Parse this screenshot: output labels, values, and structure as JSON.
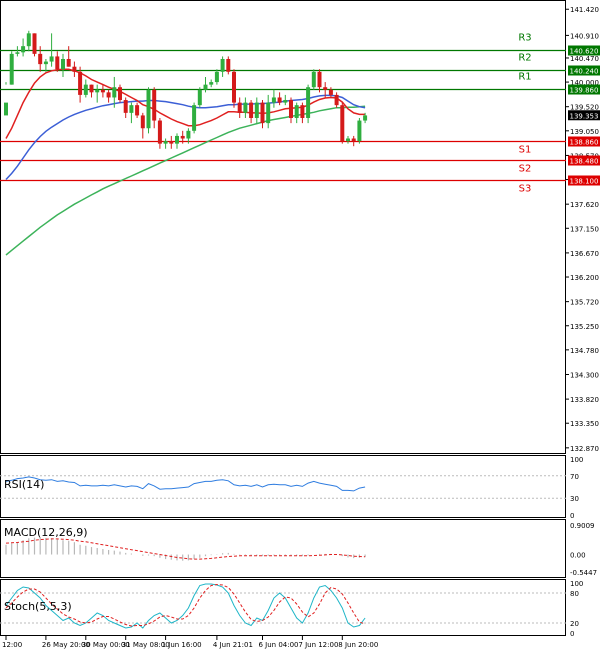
{
  "chart_data": {
    "type": "candlestick",
    "instrument_note": "4-hour chart with pivot levels, MAs, RSI, MACD, Stochastic",
    "price_axis": {
      "ylim": [
        132.75,
        141.6
      ],
      "ticks": [
        "141.420",
        "140.910",
        "140.470",
        "140.000",
        "139.520",
        "139.050",
        "138.570",
        "138.100",
        "137.620",
        "137.150",
        "136.670",
        "136.200",
        "135.720",
        "135.250",
        "134.780",
        "134.300",
        "133.820",
        "133.350",
        "132.870"
      ],
      "current_price": "139.353"
    },
    "levels": [
      {
        "name": "R3",
        "value": 140.62,
        "label": "140.620",
        "color": "#007700"
      },
      {
        "name": "R2",
        "value": 140.24,
        "label": "140.240",
        "color": "#007700"
      },
      {
        "name": "R1",
        "value": 139.86,
        "label": "139.860",
        "color": "#007700"
      },
      {
        "name": "S1",
        "value": 138.86,
        "label": "138.860",
        "color": "#dd0000"
      },
      {
        "name": "S2",
        "value": 138.48,
        "label": "138.480",
        "color": "#dd0000"
      },
      {
        "name": "S3",
        "value": 138.1,
        "label": "138.100",
        "color": "#dd0000"
      }
    ],
    "candles": [
      [
        139.35,
        139.95,
        139.6,
        140.0
      ],
      [
        139.95,
        139.95,
        140.55,
        140.6
      ],
      [
        140.55,
        140.5,
        140.58,
        140.7
      ],
      [
        140.58,
        140.5,
        140.7,
        140.85
      ],
      [
        140.7,
        140.6,
        140.95,
        141.0
      ],
      [
        140.95,
        140.5,
        140.55,
        140.95
      ],
      [
        140.55,
        140.2,
        140.35,
        140.7
      ],
      [
        140.35,
        140.2,
        140.4,
        140.45
      ],
      [
        140.4,
        140.3,
        140.5,
        140.95
      ],
      [
        140.5,
        140.2,
        140.25,
        140.6
      ],
      [
        140.25,
        140.1,
        140.45,
        140.55
      ],
      [
        140.45,
        140.3,
        140.3,
        140.7
      ],
      [
        140.3,
        140.1,
        140.2,
        140.4
      ],
      [
        140.2,
        139.6,
        139.75,
        140.3
      ],
      [
        139.75,
        139.7,
        139.95,
        140.05
      ],
      [
        139.95,
        139.7,
        139.8,
        139.95
      ],
      [
        139.8,
        139.6,
        139.85,
        139.95
      ],
      [
        139.85,
        139.7,
        139.8,
        139.95
      ],
      [
        139.8,
        139.6,
        139.7,
        139.85
      ],
      [
        139.7,
        139.5,
        139.9,
        140.1
      ],
      [
        139.9,
        139.6,
        139.65,
        139.95
      ],
      [
        139.65,
        139.3,
        139.4,
        139.7
      ],
      [
        139.4,
        139.2,
        139.55,
        139.6
      ],
      [
        139.55,
        139.3,
        139.35,
        139.6
      ],
      [
        139.35,
        138.9,
        139.1,
        139.4
      ],
      [
        139.1,
        139.0,
        139.85,
        139.9
      ],
      [
        139.85,
        139.1,
        139.25,
        139.9
      ],
      [
        139.25,
        138.7,
        138.8,
        139.3
      ],
      [
        138.8,
        138.7,
        138.85,
        138.9
      ],
      [
        138.85,
        138.7,
        138.8,
        138.95
      ],
      [
        138.8,
        138.7,
        138.95,
        139.0
      ],
      [
        138.95,
        138.8,
        138.9,
        139.05
      ],
      [
        138.9,
        138.8,
        139.05,
        139.1
      ],
      [
        139.05,
        139.0,
        139.55,
        139.6
      ],
      [
        139.55,
        139.5,
        139.85,
        139.9
      ],
      [
        139.85,
        139.8,
        139.95,
        140.1
      ],
      [
        139.95,
        139.9,
        140.0,
        140.05
      ],
      [
        140.0,
        139.95,
        140.2,
        140.25
      ],
      [
        140.2,
        140.1,
        140.45,
        140.5
      ],
      [
        140.45,
        140.15,
        140.2,
        140.5
      ],
      [
        140.2,
        139.5,
        139.6,
        140.25
      ],
      [
        139.6,
        139.3,
        139.4,
        139.7
      ],
      [
        139.4,
        139.3,
        139.6,
        139.7
      ],
      [
        139.6,
        139.2,
        139.3,
        139.65
      ],
      [
        139.3,
        139.2,
        139.6,
        139.7
      ],
      [
        139.6,
        139.1,
        139.2,
        139.65
      ],
      [
        139.2,
        139.1,
        139.6,
        139.75
      ],
      [
        139.6,
        139.5,
        139.7,
        139.85
      ],
      [
        139.7,
        139.55,
        139.6,
        139.8
      ],
      [
        139.6,
        139.55,
        139.65,
        139.75
      ],
      [
        139.65,
        139.2,
        139.3,
        139.7
      ],
      [
        139.3,
        139.2,
        139.55,
        139.6
      ],
      [
        139.55,
        139.2,
        139.3,
        139.6
      ],
      [
        139.3,
        139.2,
        139.9,
        139.95
      ],
      [
        139.9,
        139.85,
        140.2,
        140.25
      ],
      [
        140.2,
        139.8,
        139.9,
        140.25
      ],
      [
        139.9,
        139.7,
        139.85,
        140.0
      ],
      [
        139.85,
        139.7,
        139.75,
        139.9
      ],
      [
        139.75,
        139.5,
        139.55,
        139.8
      ],
      [
        139.55,
        138.8,
        138.85,
        139.6
      ],
      [
        138.85,
        138.8,
        138.9,
        138.95
      ],
      [
        138.9,
        138.75,
        138.85,
        138.95
      ],
      [
        138.85,
        138.8,
        139.25,
        139.3
      ],
      [
        139.25,
        139.2,
        139.35,
        139.4
      ]
    ],
    "ma_red": [
      138.9,
      139.1,
      139.35,
      139.6,
      139.8,
      139.98,
      140.1,
      140.18,
      140.22,
      140.24,
      140.25,
      140.25,
      140.22,
      140.18,
      140.12,
      140.05,
      140.0,
      139.95,
      139.9,
      139.86,
      139.82,
      139.76,
      139.7,
      139.64,
      139.56,
      139.52,
      139.47,
      139.4,
      139.34,
      139.28,
      139.23,
      139.19,
      139.15,
      139.15,
      139.17,
      139.21,
      139.25,
      139.3,
      139.36,
      139.42,
      139.42,
      139.41,
      139.41,
      139.4,
      139.4,
      139.39,
      139.4,
      139.42,
      139.45,
      139.48,
      139.49,
      139.5,
      139.51,
      139.55,
      139.61,
      139.66,
      139.69,
      139.7,
      139.69,
      139.61,
      139.48,
      139.4,
      139.37,
      139.37
    ],
    "ma_blue": [
      138.1,
      138.22,
      138.36,
      138.52,
      138.68,
      138.82,
      138.94,
      139.04,
      139.12,
      139.19,
      139.26,
      139.32,
      139.37,
      139.41,
      139.45,
      139.48,
      139.51,
      139.54,
      139.56,
      139.58,
      139.6,
      139.61,
      139.62,
      139.63,
      139.63,
      139.64,
      139.64,
      139.63,
      139.62,
      139.6,
      139.58,
      139.56,
      139.53,
      139.51,
      139.5,
      139.5,
      139.51,
      139.52,
      139.54,
      139.56,
      139.56,
      139.57,
      139.57,
      139.57,
      139.58,
      139.58,
      139.59,
      139.6,
      139.61,
      139.63,
      139.64,
      139.65,
      139.66,
      139.68,
      139.71,
      139.73,
      139.74,
      139.74,
      139.73,
      139.7,
      139.63,
      139.56,
      139.52,
      139.5
    ],
    "ma_green": [
      136.63,
      136.72,
      136.81,
      136.9,
      136.99,
      137.08,
      137.17,
      137.25,
      137.33,
      137.41,
      137.48,
      137.55,
      137.62,
      137.68,
      137.74,
      137.8,
      137.86,
      137.92,
      137.97,
      138.02,
      138.07,
      138.12,
      138.17,
      138.22,
      138.27,
      138.32,
      138.37,
      138.42,
      138.47,
      138.52,
      138.57,
      138.62,
      138.67,
      138.72,
      138.77,
      138.82,
      138.87,
      138.92,
      138.97,
      139.02,
      139.06,
      139.1,
      139.13,
      139.16,
      139.19,
      139.22,
      139.25,
      139.27,
      139.29,
      139.31,
      139.33,
      139.35,
      139.37,
      139.39,
      139.41,
      139.44,
      139.46,
      139.48,
      139.5,
      139.5,
      139.51,
      139.51,
      139.52,
      139.53
    ],
    "x_axis_labels": [
      "12:00",
      "26 May 20:00",
      "30 May 00:00",
      "31 May 08:00",
      "1 Jun 16:00",
      "4 Jun 21:01",
      "6 Jun 04:00",
      "7 Jun 12:00",
      "8 Jun 20:00"
    ],
    "x_label_candle_index": [
      0,
      7,
      14,
      21,
      28,
      37,
      45,
      52,
      59
    ],
    "rsi": {
      "label": "RSI(14)",
      "ylim": [
        0,
        100
      ],
      "ticks": [
        "100",
        "70",
        "30",
        "0"
      ],
      "values": [
        60,
        62,
        65,
        66,
        68,
        66,
        63,
        62,
        63,
        60,
        61,
        59,
        58,
        52,
        53,
        52,
        52,
        53,
        52,
        54,
        52,
        50,
        52,
        51,
        47,
        56,
        52,
        46,
        47,
        47,
        48,
        49,
        50,
        56,
        58,
        60,
        60,
        62,
        63,
        61,
        54,
        52,
        53,
        51,
        54,
        50,
        54,
        55,
        54,
        54,
        51,
        53,
        51,
        57,
        60,
        57,
        55,
        53,
        51,
        44,
        44,
        43,
        48,
        50
      ]
    },
    "macd": {
      "label": "MACD(12,26,9)",
      "ylim": [
        -0.66,
        1.0
      ],
      "ticks": [
        "0.9009",
        "0.00",
        "-0.5447"
      ],
      "hist": [
        0.3,
        0.34,
        0.38,
        0.44,
        0.5,
        0.52,
        0.52,
        0.51,
        0.5,
        0.47,
        0.44,
        0.42,
        0.38,
        0.3,
        0.27,
        0.23,
        0.2,
        0.17,
        0.14,
        0.12,
        0.09,
        0.05,
        0.03,
        0.0,
        -0.04,
        -0.03,
        -0.05,
        -0.1,
        -0.14,
        -0.16,
        -0.18,
        -0.19,
        -0.18,
        -0.14,
        -0.1,
        -0.05,
        -0.02,
        0.01,
        0.04,
        0.05,
        0.02,
        -0.01,
        -0.02,
        -0.04,
        -0.04,
        -0.05,
        -0.04,
        -0.03,
        -0.03,
        -0.03,
        -0.04,
        -0.04,
        -0.05,
        -0.03,
        0.0,
        0.02,
        0.02,
        0.02,
        0.0,
        -0.05,
        -0.09,
        -0.11,
        -0.1,
        -0.08
      ],
      "signal": [
        0.35,
        0.36,
        0.37,
        0.39,
        0.41,
        0.44,
        0.46,
        0.47,
        0.48,
        0.48,
        0.47,
        0.46,
        0.44,
        0.41,
        0.39,
        0.36,
        0.33,
        0.3,
        0.27,
        0.24,
        0.21,
        0.18,
        0.15,
        0.12,
        0.09,
        0.06,
        0.03,
        0.0,
        -0.03,
        -0.06,
        -0.09,
        -0.11,
        -0.13,
        -0.14,
        -0.14,
        -0.13,
        -0.12,
        -0.1,
        -0.08,
        -0.06,
        -0.05,
        -0.04,
        -0.04,
        -0.04,
        -0.04,
        -0.04,
        -0.04,
        -0.04,
        -0.04,
        -0.04,
        -0.04,
        -0.04,
        -0.04,
        -0.04,
        -0.03,
        -0.02,
        -0.01,
        0.0,
        0.0,
        -0.01,
        -0.03,
        -0.05,
        -0.06,
        -0.07
      ]
    },
    "stoch": {
      "label": "Stoch(5,5,3)",
      "ylim": [
        0,
        100
      ],
      "ticks": [
        "100",
        "80",
        "20",
        "0"
      ],
      "main": [
        55,
        70,
        85,
        92,
        90,
        80,
        70,
        55,
        45,
        35,
        25,
        30,
        20,
        15,
        20,
        30,
        40,
        35,
        25,
        20,
        15,
        10,
        12,
        20,
        10,
        25,
        35,
        40,
        30,
        20,
        25,
        35,
        50,
        75,
        95,
        98,
        98,
        96,
        92,
        80,
        55,
        35,
        20,
        15,
        30,
        25,
        45,
        70,
        80,
        70,
        50,
        30,
        20,
        40,
        70,
        92,
        95,
        85,
        70,
        50,
        20,
        12,
        15,
        30
      ],
      "signal": [
        50,
        60,
        72,
        82,
        88,
        88,
        82,
        70,
        58,
        48,
        38,
        32,
        28,
        22,
        20,
        22,
        28,
        33,
        33,
        28,
        22,
        17,
        14,
        15,
        15,
        18,
        24,
        32,
        35,
        32,
        28,
        28,
        35,
        50,
        70,
        85,
        95,
        97,
        96,
        91,
        78,
        60,
        42,
        27,
        23,
        25,
        32,
        45,
        62,
        72,
        70,
        58,
        42,
        32,
        40,
        58,
        80,
        91,
        88,
        78,
        60,
        40,
        22,
        18
      ]
    }
  }
}
